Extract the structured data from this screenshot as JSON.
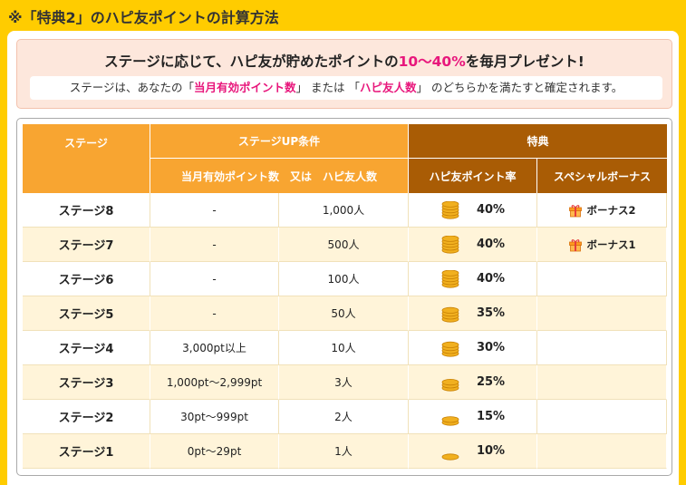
{
  "page": {
    "title": "※「特典2」のハピ友ポイントの計算方法"
  },
  "intro": {
    "headline_before": "ステージに応じて、ハピ友が貯めたポイントの",
    "headline_highlight": "10〜40%",
    "headline_after": "を毎月プレゼント!",
    "sub_before": "ステージは、あなたの「",
    "sub_term1": "当月有効ポイント数",
    "sub_middle": "」 または 「",
    "sub_term2": "ハピ友人数",
    "sub_after": "」 のどちらかを満たすと確定されます。"
  },
  "table": {
    "header_stage": "ステージ",
    "header_condition": "ステージUP条件",
    "header_condition_sub": "当月有効ポイント数　又は　ハピ友人数",
    "header_benefit": "特典",
    "header_rate": "ハピ友ポイント率",
    "header_bonus": "スペシャルボーナス",
    "rows": [
      {
        "stage": "ステージ8",
        "points": "-",
        "friends": "1,000人",
        "rate": "40%",
        "coins": 5,
        "bonus": "ボーナス2"
      },
      {
        "stage": "ステージ7",
        "points": "-",
        "friends": "500人",
        "rate": "40%",
        "coins": 5,
        "bonus": "ボーナス1"
      },
      {
        "stage": "ステージ6",
        "points": "-",
        "friends": "100人",
        "rate": "40%",
        "coins": 5,
        "bonus": ""
      },
      {
        "stage": "ステージ5",
        "points": "-",
        "friends": "50人",
        "rate": "35%",
        "coins": 4,
        "bonus": ""
      },
      {
        "stage": "ステージ4",
        "points": "3,000pt以上",
        "friends": "10人",
        "rate": "30%",
        "coins": 4,
        "bonus": ""
      },
      {
        "stage": "ステージ3",
        "points": "1,000pt〜2,999pt",
        "friends": "3人",
        "rate": "25%",
        "coins": 3,
        "bonus": ""
      },
      {
        "stage": "ステージ2",
        "points": "30pt〜999pt",
        "friends": "2人",
        "rate": "15%",
        "coins": 2,
        "bonus": ""
      },
      {
        "stage": "ステージ1",
        "points": "0pt〜29pt",
        "friends": "1人",
        "rate": "10%",
        "coins": 1,
        "bonus": ""
      }
    ]
  },
  "icons": {
    "coins": "coin-stack-icon",
    "gift": "gift-icon"
  },
  "colors": {
    "background": "#ffcc00",
    "header_orange": "#f8a531",
    "header_brown": "#a95c05",
    "highlight_pink": "#e8177c",
    "row_alt": "#fff4d9",
    "intro_bg": "#fde7dc"
  }
}
